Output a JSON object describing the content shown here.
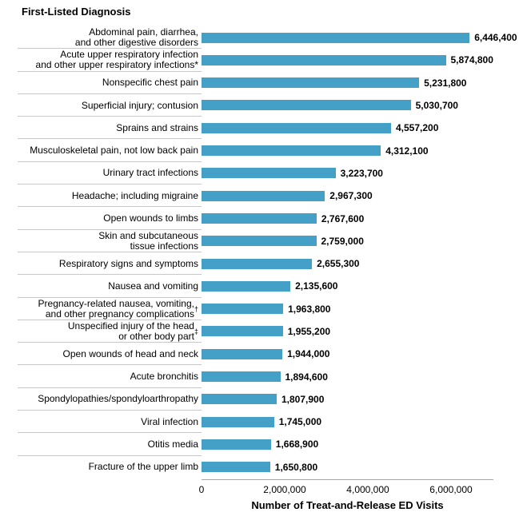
{
  "title": "First-Listed Diagnosis",
  "chart_data": {
    "type": "bar",
    "orientation": "horizontal",
    "title": "First-Listed Diagnosis",
    "xlabel": "Number of Treat-and-Release ED Visits",
    "xlim": [
      0,
      7020000
    ],
    "grid": false,
    "legend": "none",
    "bar_color": "#45a0c8",
    "separator_color": "#c8c8c8",
    "axis_line_color": "#a6a6a6",
    "x_ticks": [
      {
        "label": "0",
        "value": 0
      },
      {
        "label": "2,000,000",
        "value": 2000000
      },
      {
        "label": "4,000,000",
        "value": 4000000
      },
      {
        "label": "6,000,000",
        "value": 6000000
      }
    ],
    "categories": [
      "Abdominal pain, diarrhea, and other digestive disorders",
      "Acute upper respiratory infection and other upper respiratory infections*",
      "Nonspecific chest pain",
      "Superficial injury; contusion",
      "Sprains and strains",
      "Musculoskeletal pain, not low back pain",
      "Urinary tract infections",
      "Headache; including migraine",
      "Open wounds to limbs",
      "Skin and subcutaneous tissue infections",
      "Respiratory signs and symptoms",
      "Nausea and vomiting",
      "Pregnancy-related nausea, vomiting, and other pregnancy complications†",
      "Unspecified injury of the head or other body part‡",
      "Open wounds of head and neck",
      "Acute bronchitis",
      "Spondylopathies/spondyloarthropathy",
      "Viral infection",
      "Otitis media",
      "Fracture of the upper limb"
    ],
    "values": [
      6446400,
      5874800,
      5231800,
      5030700,
      4557200,
      4312100,
      3223700,
      2967300,
      2767600,
      2759000,
      2655300,
      2135600,
      1963800,
      1955200,
      1944000,
      1894600,
      1807900,
      1745000,
      1668900,
      1650800
    ],
    "rows": [
      {
        "label_lines": [
          "Abdominal pain, diarrhea,",
          "and other digestive disorders"
        ],
        "value": 6446400,
        "value_label": "6,446,400"
      },
      {
        "label_lines": [
          "Acute upper respiratory infection",
          "and other upper respiratory infections*"
        ],
        "value": 5874800,
        "value_label": "5,874,800"
      },
      {
        "label_lines": [
          "Nonspecific chest pain"
        ],
        "value": 5231800,
        "value_label": "5,231,800"
      },
      {
        "label_lines": [
          "Superficial injury; contusion"
        ],
        "value": 5030700,
        "value_label": "5,030,700"
      },
      {
        "label_lines": [
          "Sprains and strains"
        ],
        "value": 4557200,
        "value_label": "4,557,200"
      },
      {
        "label_lines": [
          "Musculoskeletal pain, not low back pain"
        ],
        "value": 4312100,
        "value_label": "4,312,100"
      },
      {
        "label_lines": [
          "Urinary tract infections"
        ],
        "value": 3223700,
        "value_label": "3,223,700"
      },
      {
        "label_lines": [
          "Headache; including migraine"
        ],
        "value": 2967300,
        "value_label": "2,967,300"
      },
      {
        "label_lines": [
          "Open wounds to limbs"
        ],
        "value": 2767600,
        "value_label": "2,767,600"
      },
      {
        "label_lines": [
          "Skin and subcutaneous",
          "tissue infections"
        ],
        "value": 2759000,
        "value_label": "2,759,000"
      },
      {
        "label_lines": [
          "Respiratory signs and symptoms"
        ],
        "value": 2655300,
        "value_label": "2,655,300"
      },
      {
        "label_lines": [
          "Nausea and vomiting"
        ],
        "value": 2135600,
        "value_label": "2,135,600"
      },
      {
        "label_lines": [
          "Pregnancy-related nausea, vomiting,",
          "and other pregnancy complications†"
        ],
        "value": 1963800,
        "value_label": "1,963,800"
      },
      {
        "label_lines": [
          "Unspecified injury of the head",
          "or other body part‡"
        ],
        "value": 1955200,
        "value_label": "1,955,200"
      },
      {
        "label_lines": [
          "Open wounds of head and neck"
        ],
        "value": 1944000,
        "value_label": "1,944,000"
      },
      {
        "label_lines": [
          "Acute bronchitis"
        ],
        "value": 1894600,
        "value_label": "1,894,600"
      },
      {
        "label_lines": [
          "Spondylopathies/spondyloarthropathy"
        ],
        "value": 1807900,
        "value_label": "1,807,900"
      },
      {
        "label_lines": [
          "Viral infection"
        ],
        "value": 1745000,
        "value_label": "1,745,000"
      },
      {
        "label_lines": [
          "Otitis media"
        ],
        "value": 1668900,
        "value_label": "1,668,900"
      },
      {
        "label_lines": [
          "Fracture of the upper limb"
        ],
        "value": 1650800,
        "value_label": "1,650,800"
      }
    ]
  }
}
